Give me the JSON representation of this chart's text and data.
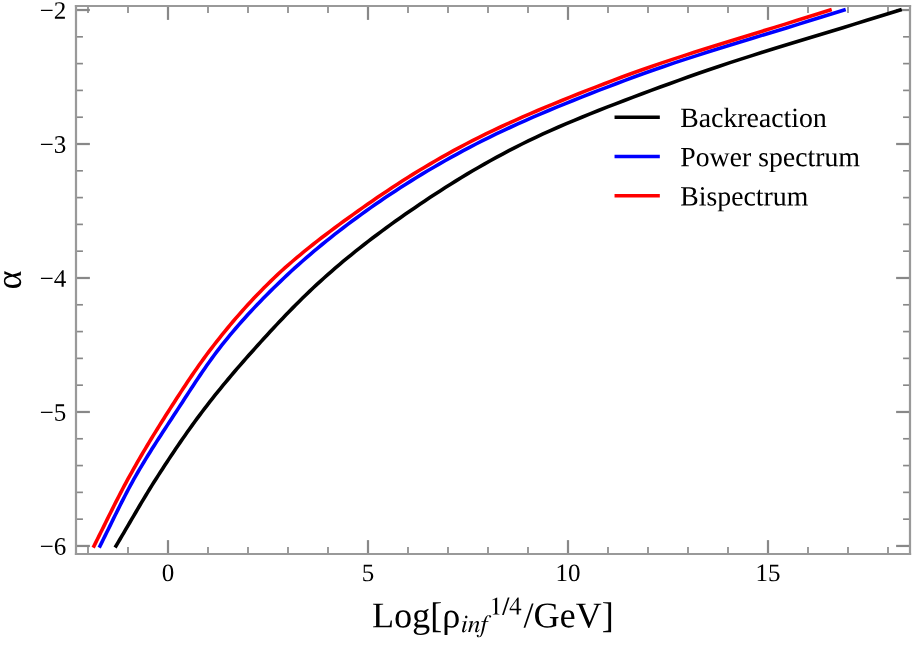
{
  "chart_data": {
    "type": "line",
    "xlabel": "Log[ρ$_{inf}$$^{1/4}$/GeV]",
    "ylabel": "α",
    "xlim": [
      -2.3,
      18.55
    ],
    "ylim": [
      -6.06,
      -1.97
    ],
    "xticks": [
      0,
      5,
      10,
      15
    ],
    "yticks": [
      -6,
      -5,
      -4,
      -3,
      -2
    ],
    "grid": false,
    "legend": "right",
    "marker": "none",
    "line_style": "solid",
    "series": [
      {
        "name": "Backreaction",
        "color": "#000000",
        "x": [
          -1.3,
          -0.3,
          0.85,
          2.25,
          3.9,
          6.05,
          8.85,
          13.0,
          18.3
        ],
        "values": [
          -6,
          -5.5,
          -5,
          -4.5,
          -4,
          -3.5,
          -3,
          -2.5,
          -2
        ]
      },
      {
        "name": "Power spectrum",
        "color": "#0000ff",
        "x": [
          -1.7,
          -0.85,
          0.2,
          1.35,
          2.9,
          4.95,
          7.7,
          11.65,
          16.9
        ],
        "values": [
          -6,
          -5.5,
          -5,
          -4.5,
          -4,
          -3.5,
          -3,
          -2.5,
          -2
        ]
      },
      {
        "name": "Bispectrum",
        "color": "#ff0000",
        "x": [
          -1.85,
          -1.0,
          0.0,
          1.15,
          2.65,
          4.75,
          7.45,
          11.35,
          16.55
        ],
        "values": [
          -6,
          -5.5,
          -5,
          -4.5,
          -4,
          -3.5,
          -3,
          -2.5,
          -2
        ]
      }
    ]
  }
}
